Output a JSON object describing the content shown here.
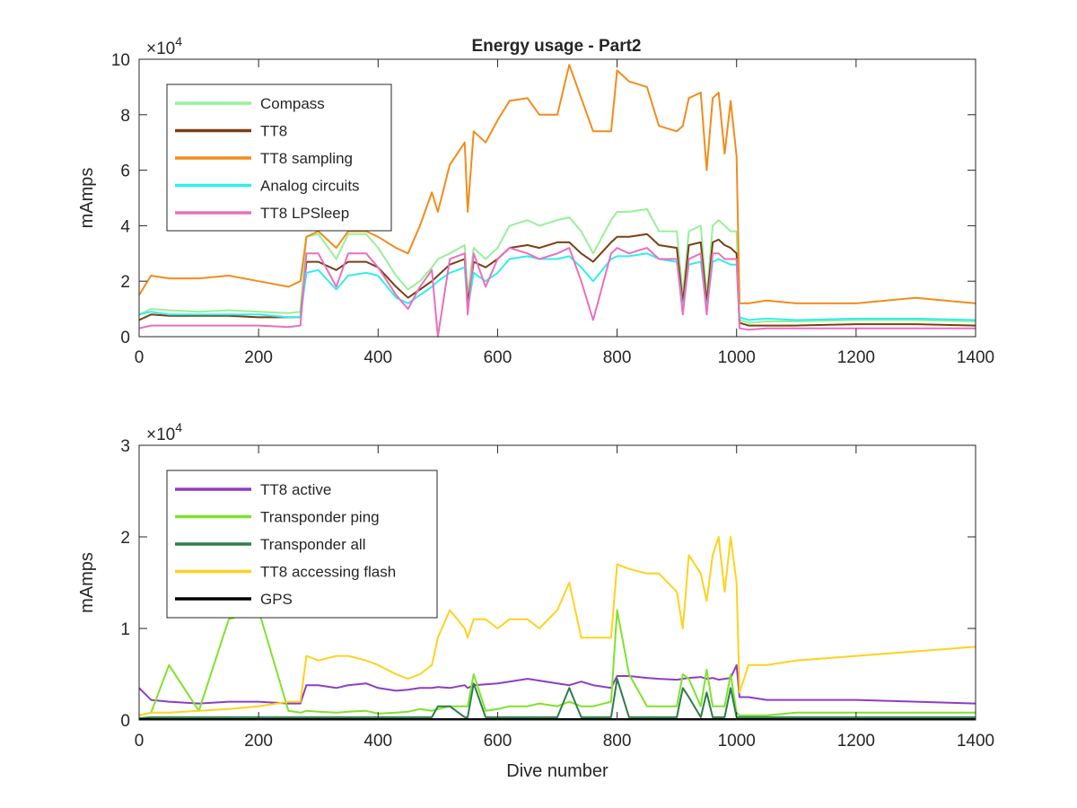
{
  "figure_title": "Energy usage - Part2",
  "chart_data": [
    {
      "type": "line",
      "title": "Energy usage - Part2",
      "xlabel": "",
      "ylabel": "mAmps",
      "xlim": [
        0,
        1400
      ],
      "ylim": [
        0,
        100000
      ],
      "y_exponent_label": "×10",
      "y_exponent": "4",
      "xticks": [
        "0",
        "200",
        "400",
        "600",
        "800",
        "1000",
        "1200",
        "1400"
      ],
      "yticks": [
        "0",
        "2",
        "4",
        "6",
        "8",
        "10"
      ],
      "legend_position": "top-left",
      "x": [
        0,
        20,
        50,
        100,
        150,
        200,
        250,
        270,
        280,
        300,
        330,
        350,
        380,
        400,
        430,
        450,
        470,
        490,
        500,
        520,
        545,
        550,
        560,
        580,
        600,
        620,
        650,
        670,
        700,
        720,
        740,
        760,
        790,
        800,
        820,
        850,
        870,
        900,
        910,
        920,
        940,
        950,
        960,
        970,
        980,
        990,
        1000,
        1005,
        1020,
        1050,
        1100,
        1200,
        1300,
        1400
      ],
      "series": [
        {
          "name": "Compass",
          "color": "#98f09a",
          "values": [
            8000,
            10000,
            9500,
            9000,
            9500,
            9000,
            8500,
            9000,
            36000,
            37000,
            28000,
            37000,
            37000,
            32000,
            22000,
            17000,
            20000,
            25000,
            28000,
            30000,
            33000,
            15000,
            32000,
            28000,
            32000,
            40000,
            42000,
            40000,
            42000,
            43000,
            38000,
            30000,
            42000,
            45000,
            45000,
            46000,
            38000,
            38000,
            15000,
            38000,
            40000,
            15000,
            40000,
            42000,
            40000,
            38000,
            38000,
            6000,
            5000,
            5500,
            5500,
            6000,
            6000,
            5500
          ]
        },
        {
          "name": "TT8",
          "color": "#7b3f13",
          "values": [
            6000,
            8000,
            7500,
            7500,
            7500,
            7000,
            7000,
            7000,
            27000,
            27000,
            24000,
            27000,
            27000,
            25000,
            18000,
            14000,
            17000,
            20000,
            22000,
            26000,
            28000,
            12000,
            27000,
            25000,
            28000,
            32000,
            33000,
            32000,
            34000,
            34000,
            30000,
            27000,
            34000,
            36000,
            36000,
            37000,
            33000,
            32000,
            12000,
            33000,
            34000,
            12000,
            34000,
            35000,
            33000,
            32000,
            30000,
            5000,
            4000,
            4000,
            4000,
            4500,
            4500,
            4000
          ]
        },
        {
          "name": "TT8 sampling",
          "color": "#f28c1b",
          "values": [
            15000,
            22000,
            21000,
            21000,
            22000,
            20000,
            18000,
            20000,
            36000,
            38000,
            32000,
            38000,
            38000,
            36000,
            32000,
            30000,
            40000,
            52000,
            45000,
            62000,
            70000,
            45000,
            74000,
            70000,
            78000,
            85000,
            86000,
            80000,
            80000,
            98000,
            86000,
            74000,
            74000,
            96000,
            92000,
            90000,
            76000,
            74000,
            76000,
            86000,
            88000,
            60000,
            86000,
            88000,
            66000,
            85000,
            65000,
            12000,
            12000,
            13000,
            12000,
            12000,
            14000,
            12000
          ]
        },
        {
          "name": "Analog circuits",
          "color": "#30eeee",
          "values": [
            8000,
            9000,
            8000,
            8000,
            8000,
            8000,
            7000,
            7000,
            23000,
            24000,
            17000,
            22000,
            23000,
            22000,
            14000,
            12000,
            15000,
            18000,
            20000,
            23000,
            25000,
            10000,
            23000,
            20000,
            23000,
            28000,
            29000,
            28000,
            28000,
            29000,
            25000,
            20000,
            28000,
            29000,
            29000,
            30000,
            28000,
            27000,
            10000,
            26000,
            27000,
            10000,
            27000,
            28000,
            27000,
            26000,
            26000,
            7000,
            6000,
            6500,
            6000,
            6500,
            6500,
            6000
          ]
        },
        {
          "name": "TT8 LPSleep",
          "color": "#ea6fbd",
          "values": [
            3000,
            4000,
            4000,
            4000,
            4000,
            4000,
            3500,
            4000,
            30000,
            30000,
            18000,
            30000,
            30000,
            25000,
            15000,
            10000,
            18000,
            24000,
            0,
            28000,
            30000,
            8000,
            30000,
            18000,
            28000,
            32000,
            30000,
            28000,
            30000,
            32000,
            20000,
            6000,
            30000,
            32000,
            30000,
            32000,
            28000,
            28000,
            8000,
            28000,
            30000,
            8000,
            30000,
            30000,
            28000,
            28000,
            28000,
            3000,
            2500,
            3000,
            3000,
            3000,
            3000,
            3000
          ]
        }
      ]
    },
    {
      "type": "line",
      "title": "",
      "xlabel": "Dive number",
      "ylabel": "mAmps",
      "xlim": [
        0,
        1400
      ],
      "ylim": [
        0,
        30000
      ],
      "y_exponent_label": "×10",
      "y_exponent": "4",
      "xticks": [
        "0",
        "200",
        "400",
        "600",
        "800",
        "1000",
        "1200",
        "1400"
      ],
      "yticks": [
        "0",
        "1",
        "2",
        "3"
      ],
      "legend_position": "top-left",
      "x": [
        0,
        20,
        50,
        100,
        150,
        200,
        250,
        270,
        280,
        300,
        330,
        350,
        380,
        400,
        430,
        450,
        470,
        490,
        500,
        520,
        545,
        550,
        560,
        580,
        600,
        620,
        650,
        670,
        700,
        720,
        740,
        760,
        790,
        800,
        820,
        850,
        870,
        900,
        910,
        920,
        940,
        950,
        960,
        970,
        980,
        990,
        1000,
        1005,
        1020,
        1050,
        1100,
        1200,
        1300,
        1400
      ],
      "series": [
        {
          "name": "TT8 active",
          "color": "#8d3ec2",
          "values": [
            3500,
            2200,
            2000,
            1800,
            2000,
            2000,
            1800,
            1800,
            3800,
            3800,
            3500,
            3800,
            4000,
            3500,
            3200,
            3300,
            3500,
            3500,
            3600,
            3500,
            3800,
            3500,
            3800,
            3900,
            4000,
            4200,
            4500,
            4300,
            4000,
            3800,
            4200,
            3800,
            3500,
            4800,
            4800,
            4600,
            4500,
            4400,
            4500,
            4600,
            4700,
            4500,
            4600,
            4400,
            4500,
            4600,
            6000,
            2500,
            2500,
            2200,
            2200,
            2200,
            2000,
            1800
          ]
        },
        {
          "name": "Transponder ping",
          "color": "#7ee32b",
          "values": [
            500,
            800,
            6000,
            1000,
            11000,
            12000,
            1000,
            800,
            1000,
            900,
            800,
            900,
            1000,
            700,
            800,
            900,
            1200,
            1000,
            1200,
            1500,
            1500,
            1500,
            5000,
            1000,
            1200,
            1500,
            1500,
            1800,
            1500,
            2000,
            1500,
            1500,
            2000,
            12000,
            5000,
            1500,
            1500,
            1500,
            5000,
            4500,
            1500,
            5500,
            1500,
            1500,
            1500,
            5000,
            800,
            500,
            500,
            500,
            800,
            800,
            800,
            800
          ]
        },
        {
          "name": "Transponder all",
          "color": "#2e7d4a",
          "values": [
            200,
            300,
            300,
            300,
            300,
            300,
            300,
            300,
            300,
            300,
            300,
            300,
            300,
            300,
            300,
            300,
            300,
            300,
            1500,
            1500,
            300,
            300,
            4000,
            300,
            300,
            300,
            300,
            300,
            300,
            3500,
            300,
            300,
            300,
            4500,
            300,
            300,
            300,
            300,
            3500,
            2500,
            300,
            3000,
            300,
            300,
            300,
            3500,
            300,
            300,
            300,
            300,
            300,
            300,
            300,
            300
          ]
        },
        {
          "name": "TT8 accessing flash",
          "color": "#ffd11f",
          "values": [
            500,
            800,
            800,
            1000,
            1200,
            1500,
            2000,
            2000,
            7000,
            6500,
            7000,
            7000,
            6500,
            6000,
            5000,
            4500,
            5000,
            6000,
            9000,
            12000,
            10000,
            9000,
            11000,
            11000,
            10000,
            11000,
            11000,
            10000,
            12000,
            15000,
            9000,
            9000,
            9000,
            17000,
            16500,
            16000,
            16000,
            14000,
            10000,
            18000,
            16000,
            13000,
            18000,
            20000,
            14000,
            20000,
            15000,
            3000,
            6000,
            6000,
            6500,
            7000,
            7500,
            8000
          ]
        },
        {
          "name": "GPS",
          "color": "#000000",
          "values": [
            100,
            100,
            100,
            100,
            100,
            100,
            100,
            100,
            100,
            100,
            100,
            100,
            100,
            100,
            100,
            100,
            100,
            100,
            100,
            100,
            100,
            100,
            100,
            100,
            100,
            100,
            100,
            100,
            100,
            100,
            100,
            100,
            100,
            100,
            100,
            100,
            100,
            100,
            100,
            100,
            100,
            100,
            100,
            100,
            100,
            100,
            100,
            100,
            100,
            100,
            100,
            100,
            100,
            100
          ]
        }
      ]
    }
  ]
}
